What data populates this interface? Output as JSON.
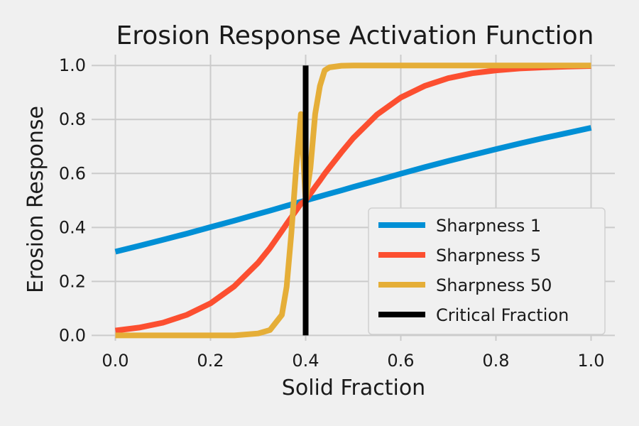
{
  "chart_data": {
    "type": "line",
    "title": "Erosion Response Activation Function",
    "xlabel": "Solid Fraction",
    "ylabel": "Erosion Response",
    "xlim": [
      -0.05,
      1.05
    ],
    "ylim": [
      -0.02,
      1.04
    ],
    "xticks": [
      0.0,
      0.2,
      0.4,
      0.6,
      0.8,
      1.0
    ],
    "xtick_labels": [
      "0.0",
      "0.2",
      "0.4",
      "0.6",
      "0.8",
      "1.0"
    ],
    "yticks": [
      0.0,
      0.2,
      0.4,
      0.6,
      0.8,
      1.0
    ],
    "ytick_labels": [
      "0.0",
      "0.2",
      "0.4",
      "0.6",
      "0.8",
      "1.0"
    ],
    "grid": true,
    "legend_position": "lower-right",
    "x": [
      0.0,
      0.05,
      0.1,
      0.15,
      0.2,
      0.25,
      0.3,
      0.325,
      0.35,
      0.36,
      0.37,
      0.38,
      0.39,
      0.4,
      0.41,
      0.42,
      0.43,
      0.44,
      0.45,
      0.475,
      0.5,
      0.55,
      0.6,
      0.65,
      0.7,
      0.75,
      0.8,
      0.85,
      0.9,
      0.95,
      1.0
    ],
    "series": [
      {
        "name": "Sharpness 1",
        "color": "#008fd5",
        "values": [
          0.31,
          0.332,
          0.354,
          0.377,
          0.401,
          0.425,
          0.45,
          0.462,
          0.475,
          0.48,
          0.485,
          0.49,
          0.495,
          0.5,
          0.505,
          0.51,
          0.515,
          0.52,
          0.525,
          0.537,
          0.55,
          0.574,
          0.599,
          0.623,
          0.646,
          0.668,
          0.69,
          0.711,
          0.731,
          0.75,
          0.769
        ]
      },
      {
        "name": "Sharpness 5",
        "color": "#fc4f30",
        "values": [
          0.018,
          0.029,
          0.047,
          0.076,
          0.119,
          0.182,
          0.269,
          0.324,
          0.387,
          0.413,
          0.438,
          0.463,
          0.488,
          0.5,
          0.525,
          0.55,
          0.574,
          0.599,
          0.622,
          0.678,
          0.731,
          0.818,
          0.881,
          0.924,
          0.953,
          0.971,
          0.982,
          0.989,
          0.993,
          0.996,
          0.998
        ]
      },
      {
        "name": "Sharpness 50",
        "color": "#e5ae38",
        "values": [
          0.0,
          0.0,
          0.0,
          0.0,
          0.0,
          0.0,
          0.007,
          0.02,
          0.076,
          0.18,
          0.38,
          0.62,
          0.82,
          0.5,
          0.62,
          0.82,
          0.924,
          0.982,
          0.993,
          0.999,
          1.0,
          1.0,
          1.0,
          1.0,
          1.0,
          1.0,
          1.0,
          1.0,
          1.0,
          1.0,
          1.0
        ]
      }
    ],
    "vertical_line": {
      "name": "Critical Fraction",
      "x": 0.4,
      "y_range": [
        0.0,
        1.0
      ],
      "color": "#000000"
    }
  }
}
